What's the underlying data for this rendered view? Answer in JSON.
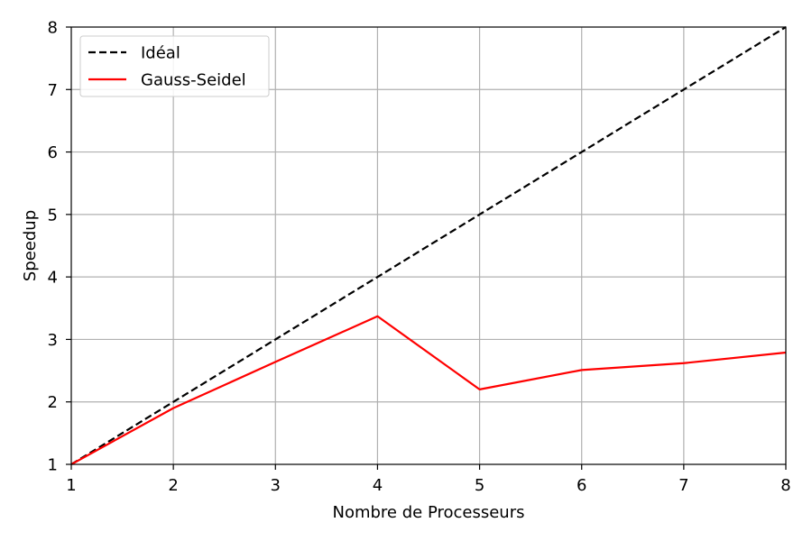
{
  "chart_data": {
    "type": "line",
    "title": "",
    "xlabel": "Nombre de Processeurs",
    "ylabel": "Speedup",
    "xlim": [
      1,
      8
    ],
    "ylim": [
      1,
      8
    ],
    "xticks": [
      1,
      2,
      3,
      4,
      5,
      6,
      7,
      8
    ],
    "yticks": [
      1,
      2,
      3,
      4,
      5,
      6,
      7,
      8
    ],
    "grid": true,
    "legend_position": "top-left",
    "series": [
      {
        "name": "Idéal",
        "x": [
          1,
          2,
          3,
          4,
          5,
          6,
          7,
          8
        ],
        "y": [
          1,
          2,
          3,
          4,
          5,
          6,
          7,
          8
        ],
        "color": "#000000",
        "style": "dashed"
      },
      {
        "name": "Gauss-Seidel",
        "x": [
          1,
          2,
          3,
          4,
          5,
          6,
          7,
          8
        ],
        "y": [
          1.0,
          1.9,
          2.64,
          3.37,
          2.2,
          2.51,
          2.62,
          2.79
        ],
        "color": "#ff0000",
        "style": "solid"
      }
    ]
  }
}
